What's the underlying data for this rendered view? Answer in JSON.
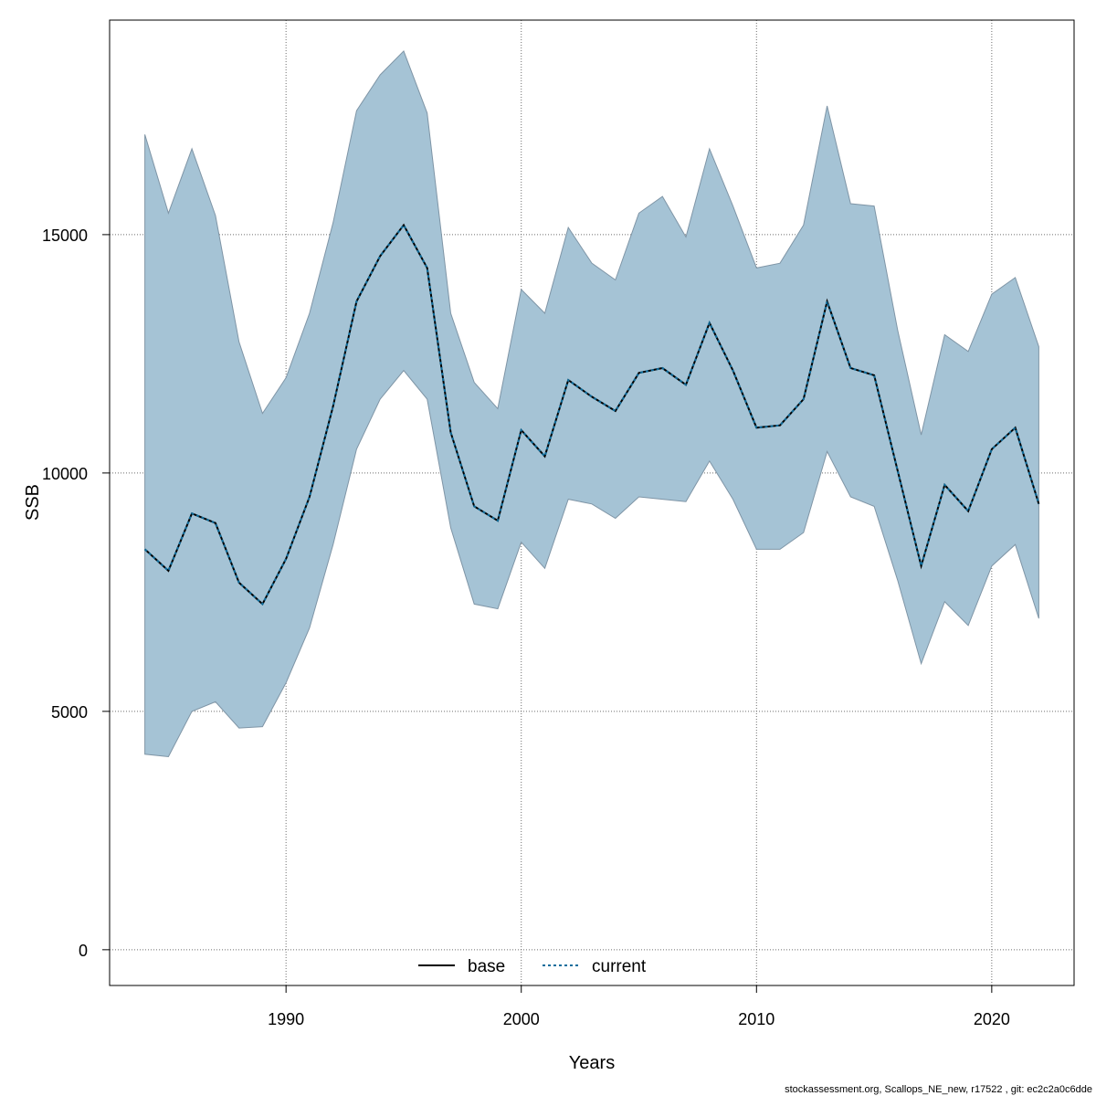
{
  "chart_data": {
    "type": "area",
    "title": "",
    "xlabel": "Years",
    "ylabel": "SSB",
    "xlim": [
      1982.5,
      2023.5
    ],
    "ylim": [
      -750,
      19500
    ],
    "xticks": [
      1990,
      2000,
      2010,
      2020
    ],
    "yticks": [
      0,
      5000,
      10000,
      15000
    ],
    "grid": true,
    "legend_position": "bottom-center",
    "colors": {
      "band_fill": "#a5c3d5",
      "band_stroke": "#7f95a6",
      "base_line": "#000000",
      "current_line": "#0f6d9c",
      "grid": "#6e6e6e"
    },
    "x": [
      1984,
      1985,
      1986,
      1987,
      1988,
      1989,
      1990,
      1991,
      1992,
      1993,
      1994,
      1995,
      1996,
      1997,
      1998,
      1999,
      2000,
      2001,
      2002,
      2003,
      2004,
      2005,
      2006,
      2007,
      2008,
      2009,
      2010,
      2011,
      2012,
      2013,
      2014,
      2015,
      2016,
      2017,
      2018,
      2019,
      2020,
      2021,
      2022
    ],
    "series": [
      {
        "name": "base",
        "values": [
          8400,
          7950,
          9150,
          8950,
          7700,
          7250,
          8200,
          9500,
          11400,
          13600,
          14550,
          15200,
          14300,
          10850,
          9300,
          9000,
          10900,
          10350,
          11950,
          11600,
          11300,
          12100,
          12200,
          11850,
          13150,
          12150,
          10950,
          11000,
          11550,
          13600,
          12200,
          12050,
          10050,
          8050,
          9750,
          9200,
          10500,
          10950,
          9350
        ]
      },
      {
        "name": "current",
        "values": [
          8400,
          7950,
          9150,
          8950,
          7700,
          7250,
          8200,
          9500,
          11400,
          13600,
          14550,
          15200,
          14300,
          10850,
          9300,
          9000,
          10900,
          10350,
          11950,
          11600,
          11300,
          12100,
          12200,
          11850,
          13150,
          12150,
          10950,
          11000,
          11550,
          13600,
          12200,
          12050,
          10050,
          8050,
          9750,
          9200,
          10500,
          10950,
          9350
        ]
      }
    ],
    "band": {
      "lower": [
        4100,
        4050,
        5000,
        5200,
        4650,
        4680,
        5600,
        6750,
        8500,
        10500,
        11550,
        12150,
        11550,
        8850,
        7250,
        7150,
        8550,
        8000,
        9450,
        9350,
        9050,
        9500,
        9450,
        9400,
        10250,
        9450,
        8400,
        8400,
        8750,
        10450,
        9500,
        9300,
        7750,
        6000,
        7300,
        6800,
        8050,
        8500,
        6950
      ],
      "upper": [
        17100,
        15450,
        16800,
        15400,
        12750,
        11250,
        12000,
        13350,
        15250,
        17600,
        18350,
        18850,
        17550,
        13350,
        11900,
        11350,
        13850,
        13350,
        15150,
        14400,
        14050,
        15450,
        15800,
        14950,
        16800,
        15600,
        14300,
        14400,
        15200,
        17700,
        15650,
        15600,
        13000,
        10800,
        12900,
        12550,
        13750,
        14100,
        12650
      ]
    }
  },
  "footer": {
    "note": "stockassessment.org, Scallops_NE_new, r17522 , git: ec2c2a0c6dde"
  }
}
